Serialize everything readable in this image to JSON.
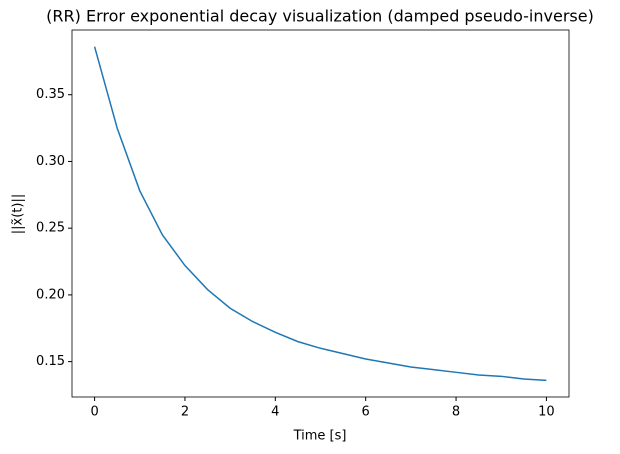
{
  "chart_data": {
    "type": "line",
    "title": "(RR) Error exponential decay visualization (damped pseudo-inverse)",
    "x_label": "Time [s]",
    "y_label": "||x̃(t)||",
    "x": [
      0,
      0.5,
      1,
      1.5,
      2,
      2.5,
      3,
      3.5,
      4,
      4.5,
      5,
      5.5,
      6,
      6.5,
      7,
      7.5,
      8,
      8.5,
      9,
      9.5,
      10
    ],
    "series": [
      {
        "color": "#1f77b4",
        "values": [
          0.386,
          0.325,
          0.278,
          0.245,
          0.222,
          0.204,
          0.19,
          0.18,
          0.172,
          0.165,
          0.16,
          0.156,
          0.152,
          0.149,
          0.146,
          0.144,
          0.142,
          0.14,
          0.139,
          0.137,
          0.136
        ]
      }
    ],
    "xlim": [
      -0.5,
      10.5
    ],
    "xticks": [
      0,
      2,
      4,
      6,
      8,
      10
    ],
    "ylim": [
      0.1235,
      0.3985
    ],
    "yticks": [
      0.15,
      {
        "value": 0.2,
        "label": "0.20"
      },
      0.25,
      {
        "value": 0.3,
        "label": "0.30"
      },
      0.35
    ],
    "grid": false
  }
}
